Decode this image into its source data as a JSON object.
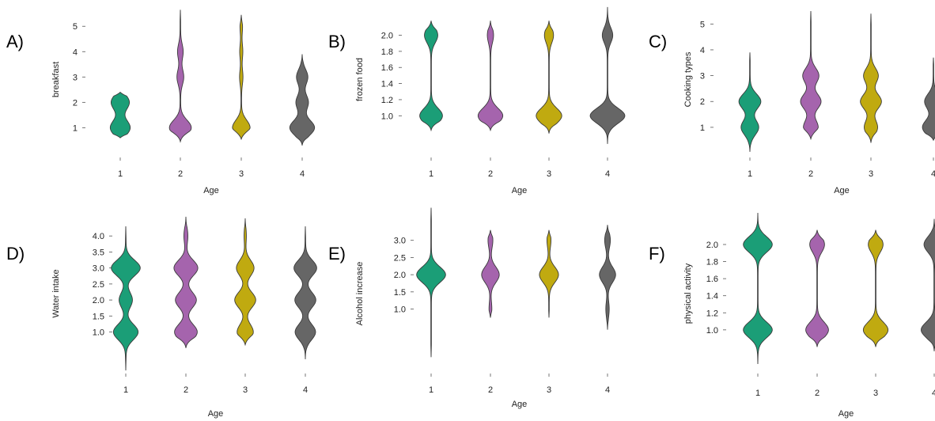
{
  "colors": {
    "group1": "#1b9e77",
    "group2": "#a564ad",
    "group3": "#c0aa10",
    "group4": "#666666"
  },
  "chart_data": [
    {
      "panel": "A)",
      "type": "violin",
      "categories": [
        "1",
        "2",
        "3",
        "4"
      ],
      "xlabel": "Age",
      "ylabel": "breakfast",
      "yticks": [
        "1",
        "2",
        "3",
        "4",
        "5"
      ],
      "ylim": [
        0.2,
        5.6
      ],
      "series": [
        {
          "category": "1",
          "ymin": 0.6,
          "ymax": 2.4,
          "modes": [
            1.0,
            2.0
          ],
          "mode_weights": [
            0.68,
            0.62
          ]
        },
        {
          "category": "2",
          "ymin": 0.45,
          "ymax": 5.65,
          "modes": [
            1.0,
            3.0,
            4.0
          ],
          "mode_weights": [
            0.75,
            0.22,
            0.18
          ]
        },
        {
          "category": "3",
          "ymin": 0.55,
          "ymax": 5.45,
          "modes": [
            1.0,
            3.0,
            4.0,
            5.0
          ],
          "mode_weights": [
            0.6,
            0.1,
            0.09,
            0.07
          ]
        },
        {
          "category": "4",
          "ymin": 0.3,
          "ymax": 3.9,
          "modes": [
            1.0,
            2.0,
            3.0
          ],
          "mode_weights": [
            0.85,
            0.42,
            0.38
          ]
        }
      ]
    },
    {
      "panel": "B)",
      "type": "violin",
      "categories": [
        "1",
        "2",
        "3",
        "4"
      ],
      "xlabel": "Age",
      "ylabel": "frozen food",
      "yticks": [
        "1.0",
        "1.2",
        "1.4",
        "1.6",
        "1.8",
        "2.0"
      ],
      "ylim": [
        0.6,
        2.3
      ],
      "series": [
        {
          "category": "1",
          "ymin": 0.82,
          "ymax": 2.18,
          "modes": [
            1.0,
            2.0
          ],
          "mode_weights": [
            0.78,
            0.45
          ]
        },
        {
          "category": "2",
          "ymin": 0.82,
          "ymax": 2.18,
          "modes": [
            1.0,
            2.0
          ],
          "mode_weights": [
            0.85,
            0.2
          ]
        },
        {
          "category": "3",
          "ymin": 0.78,
          "ymax": 2.18,
          "modes": [
            1.0,
            2.0
          ],
          "mode_weights": [
            0.88,
            0.3
          ]
        },
        {
          "category": "4",
          "ymin": 0.65,
          "ymax": 2.35,
          "modes": [
            1.0,
            2.0
          ],
          "mode_weights": [
            1.2,
            0.35
          ]
        }
      ]
    },
    {
      "panel": "C)",
      "type": "violin",
      "categories": [
        "1",
        "2",
        "3",
        "4"
      ],
      "xlabel": "Age",
      "ylabel": "Cooking types",
      "yticks": [
        "1",
        "2",
        "3",
        "4",
        "5"
      ],
      "ylim": [
        0.2,
        5.5
      ],
      "series": [
        {
          "category": "1",
          "ymin": 0.05,
          "ymax": 3.9,
          "modes": [
            1.0,
            2.0
          ],
          "mode_weights": [
            0.6,
            0.75
          ]
        },
        {
          "category": "2",
          "ymin": 0.55,
          "ymax": 5.5,
          "modes": [
            1.0,
            2.0,
            3.0
          ],
          "mode_weights": [
            0.5,
            0.7,
            0.55
          ]
        },
        {
          "category": "3",
          "ymin": 0.4,
          "ymax": 5.4,
          "modes": [
            1.0,
            2.0,
            3.0
          ],
          "mode_weights": [
            0.45,
            0.72,
            0.5
          ]
        },
        {
          "category": "4",
          "ymin": 0.5,
          "ymax": 3.7,
          "modes": [
            1.0,
            2.0
          ],
          "mode_weights": [
            0.75,
            0.6
          ]
        }
      ]
    },
    {
      "panel": "D)",
      "type": "violin",
      "categories": [
        "1",
        "2",
        "3",
        "4"
      ],
      "xlabel": "Age",
      "ylabel": "Water intake",
      "yticks": [
        "1.0",
        "1.5",
        "2.0",
        "2.5",
        "3.0",
        "3.5",
        "4.0"
      ],
      "ylim": [
        0.0,
        4.4
      ],
      "series": [
        {
          "category": "1",
          "ymin": -0.2,
          "ymax": 4.3,
          "modes": [
            1.0,
            2.0,
            3.0
          ],
          "mode_weights": [
            0.85,
            0.45,
            1.0
          ]
        },
        {
          "category": "2",
          "ymin": 0.5,
          "ymax": 4.6,
          "modes": [
            1.0,
            2.0,
            3.0,
            4.0
          ],
          "mode_weights": [
            0.78,
            0.72,
            0.82,
            0.12
          ]
        },
        {
          "category": "3",
          "ymin": 0.6,
          "ymax": 4.55,
          "modes": [
            1.0,
            2.0,
            3.0,
            4.0
          ],
          "mode_weights": [
            0.55,
            0.72,
            0.6,
            0.06
          ]
        },
        {
          "category": "4",
          "ymin": 0.15,
          "ymax": 4.3,
          "modes": [
            1.0,
            2.0,
            3.0
          ],
          "mode_weights": [
            0.7,
            0.72,
            0.78
          ]
        }
      ]
    },
    {
      "panel": "E)",
      "type": "violin",
      "categories": [
        "1",
        "2",
        "3",
        "4"
      ],
      "xlabel": "Age",
      "ylabel": "Alcohol increase",
      "yticks": [
        "1.0",
        "1.5",
        "2.0",
        "2.5",
        "3.0"
      ],
      "ylim": [
        -0.6,
        3.5
      ],
      "series": [
        {
          "category": "1",
          "ymin": -0.4,
          "ymax": 3.95,
          "modes": [
            2.0
          ],
          "mode_weights": [
            1.0
          ]
        },
        {
          "category": "2",
          "ymin": 0.75,
          "ymax": 3.3,
          "modes": [
            1.0,
            2.0,
            3.0
          ],
          "mode_weights": [
            0.08,
            0.6,
            0.15
          ]
        },
        {
          "category": "3",
          "ymin": 0.75,
          "ymax": 3.3,
          "modes": [
            2.0,
            3.0
          ],
          "mode_weights": [
            0.65,
            0.12
          ]
        },
        {
          "category": "4",
          "ymin": 0.4,
          "ymax": 3.45,
          "modes": [
            1.0,
            2.0,
            3.0
          ],
          "mode_weights": [
            0.1,
            0.55,
            0.18
          ]
        }
      ]
    },
    {
      "panel": "F)",
      "type": "violin",
      "categories": [
        "1",
        "2",
        "3",
        "4"
      ],
      "xlabel": "Age",
      "ylabel": "physical activity",
      "yticks": [
        "1.0",
        "1.2",
        "1.4",
        "1.6",
        "1.8",
        "2.0"
      ],
      "ylim": [
        0.6,
        2.25
      ],
      "series": [
        {
          "category": "1",
          "ymin": 0.6,
          "ymax": 2.37,
          "modes": [
            1.0,
            2.0
          ],
          "mode_weights": [
            1.0,
            1.0
          ]
        },
        {
          "category": "2",
          "ymin": 0.8,
          "ymax": 2.17,
          "modes": [
            1.0,
            2.0
          ],
          "mode_weights": [
            0.78,
            0.5
          ]
        },
        {
          "category": "3",
          "ymin": 0.8,
          "ymax": 2.17,
          "modes": [
            1.0,
            2.0
          ],
          "mode_weights": [
            0.85,
            0.5
          ]
        },
        {
          "category": "4",
          "ymin": 0.75,
          "ymax": 2.3,
          "modes": [
            1.0,
            2.0
          ],
          "mode_weights": [
            0.9,
            0.7
          ]
        }
      ]
    }
  ]
}
